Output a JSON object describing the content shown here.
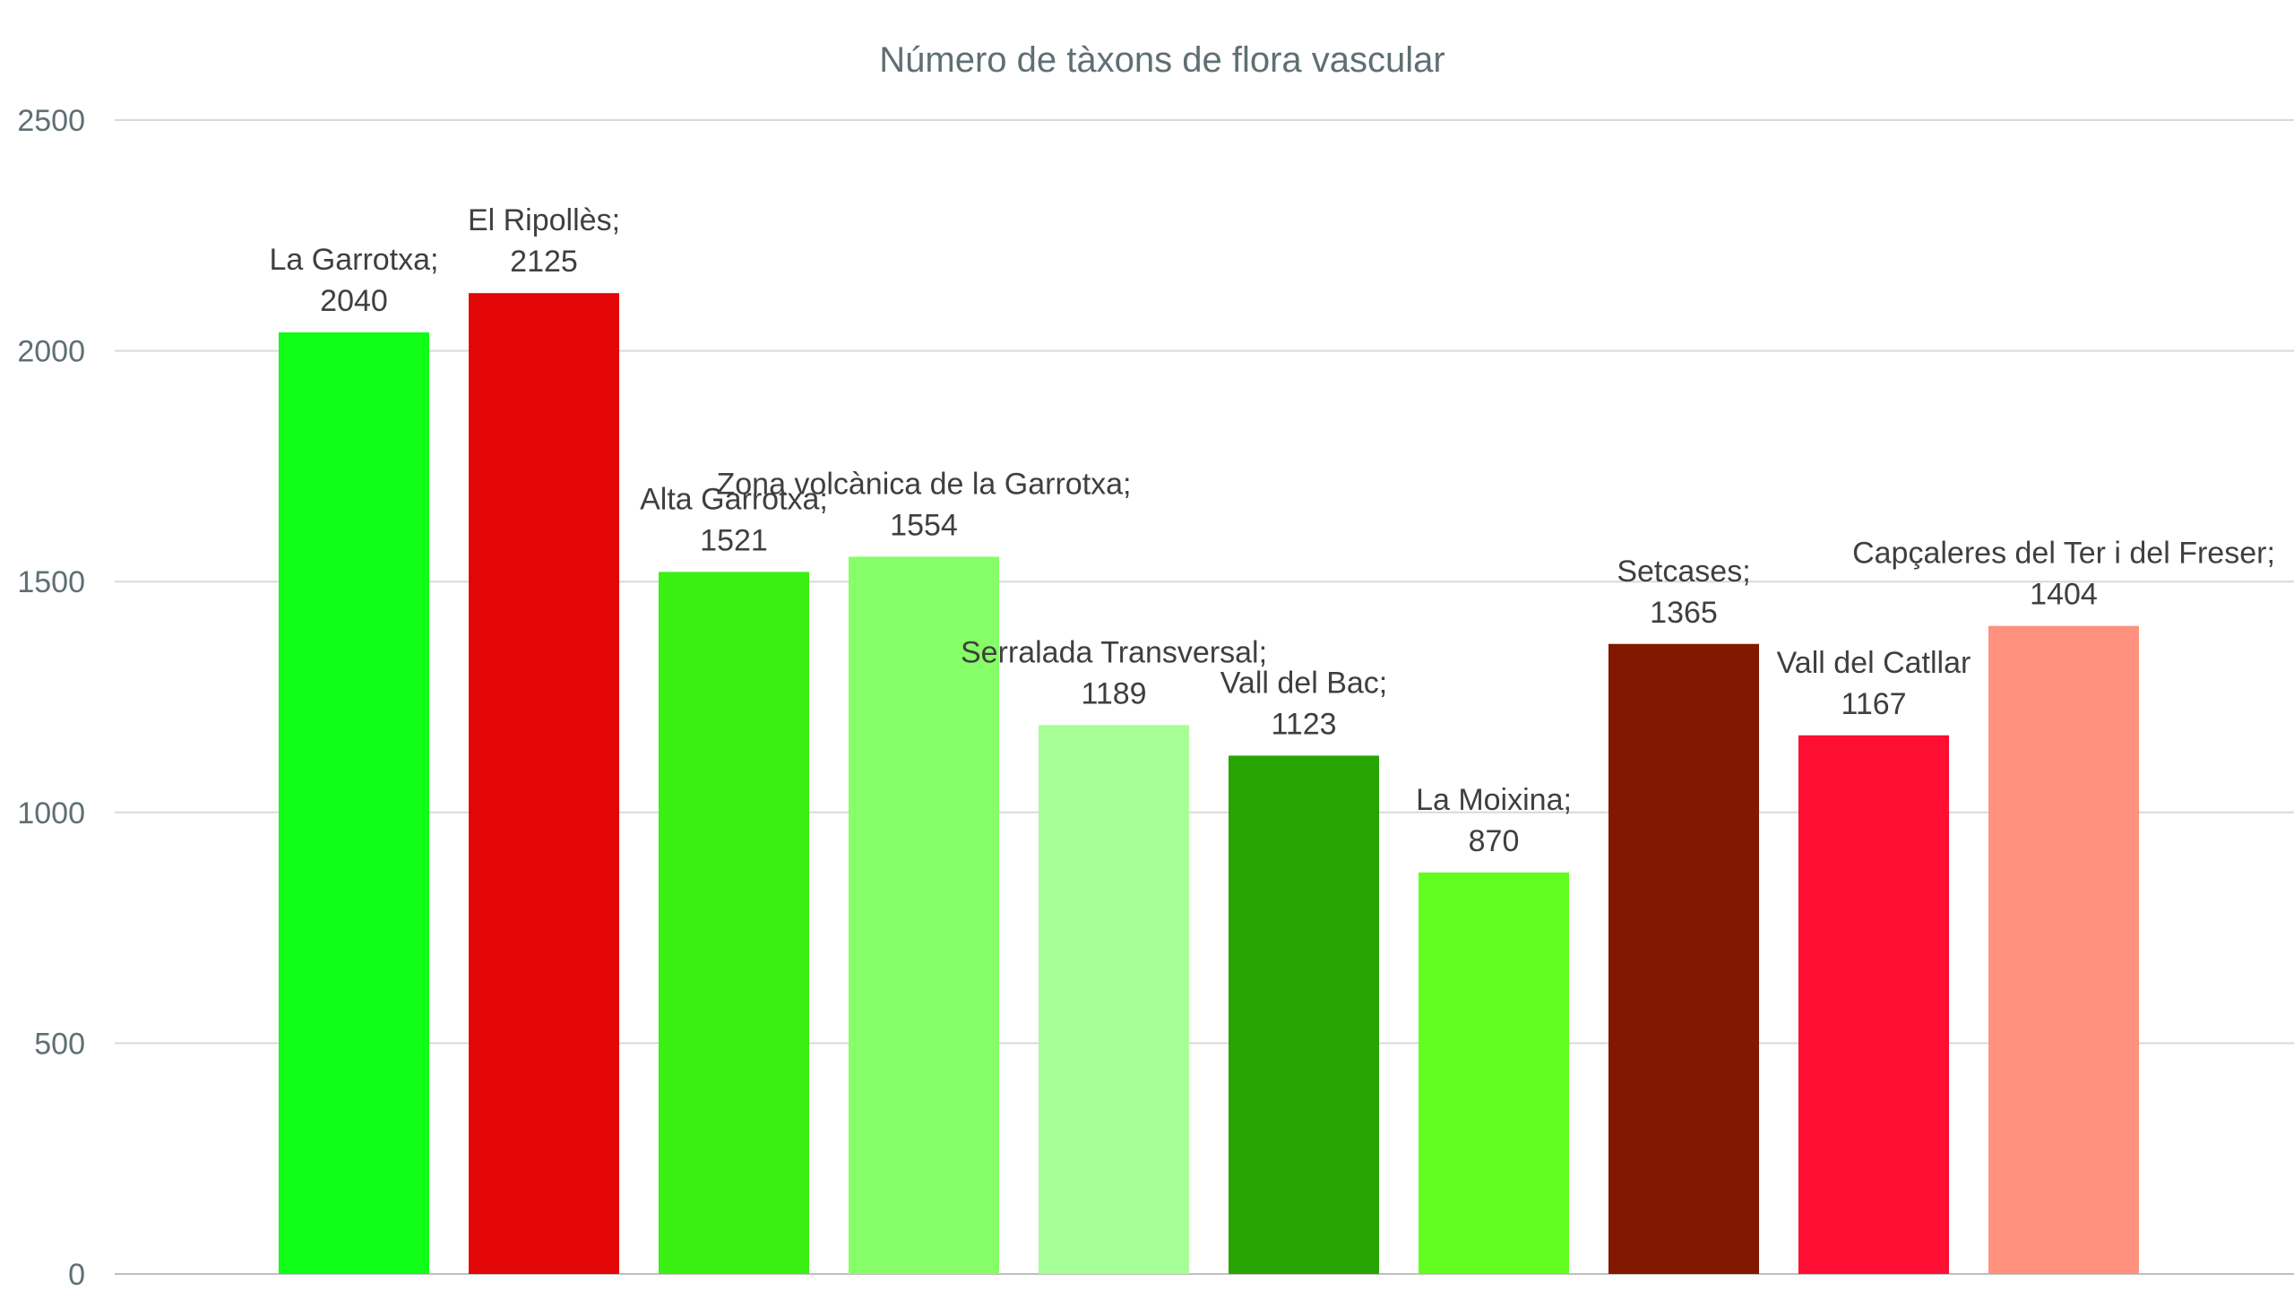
{
  "chart_data": {
    "type": "bar",
    "title": "Número de tàxons de flora vascular",
    "xlabel": "",
    "ylabel": "",
    "ylim": [
      0,
      2500
    ],
    "yticks": [
      0,
      500,
      1000,
      1500,
      2000,
      2500
    ],
    "grid": true,
    "legend": "none",
    "categories": [
      "La Garrotxa",
      "El Ripollès",
      "Alta Garrotxa",
      "Zona volcànica de la Garrotxa",
      "Serralada Transversal",
      "Vall del Bac",
      "La Moixina",
      "Setcases",
      "Vall del Catllar",
      "Capçaleres del Ter i del Freser"
    ],
    "values": [
      2040,
      2125,
      1521,
      1554,
      1189,
      1123,
      870,
      1365,
      1167,
      1404
    ],
    "label_texts": [
      [
        "La Garrotxa;",
        "2040"
      ],
      [
        "El Ripollès;",
        "2125"
      ],
      [
        "Alta Garrotxa;",
        "1521"
      ],
      [
        "Zona volcànica de la Garrotxa;",
        "1554"
      ],
      [
        "Serralada Transversal;",
        "1189"
      ],
      [
        "Vall del Bac;",
        "1123"
      ],
      [
        "La Moixina;",
        "870"
      ],
      [
        "Setcases;",
        "1365"
      ],
      [
        "Vall del Catllar",
        "1167"
      ],
      [
        "Capçaleres del Ter i del Freser;",
        "1404"
      ]
    ],
    "colors": [
      "#0ffd17",
      "#e20606",
      "#3aef12",
      "#86fe67",
      "#a6fe96",
      "#28a502",
      "#62fe1f",
      "#821800",
      "#ff0e33",
      "#ff917e"
    ]
  }
}
